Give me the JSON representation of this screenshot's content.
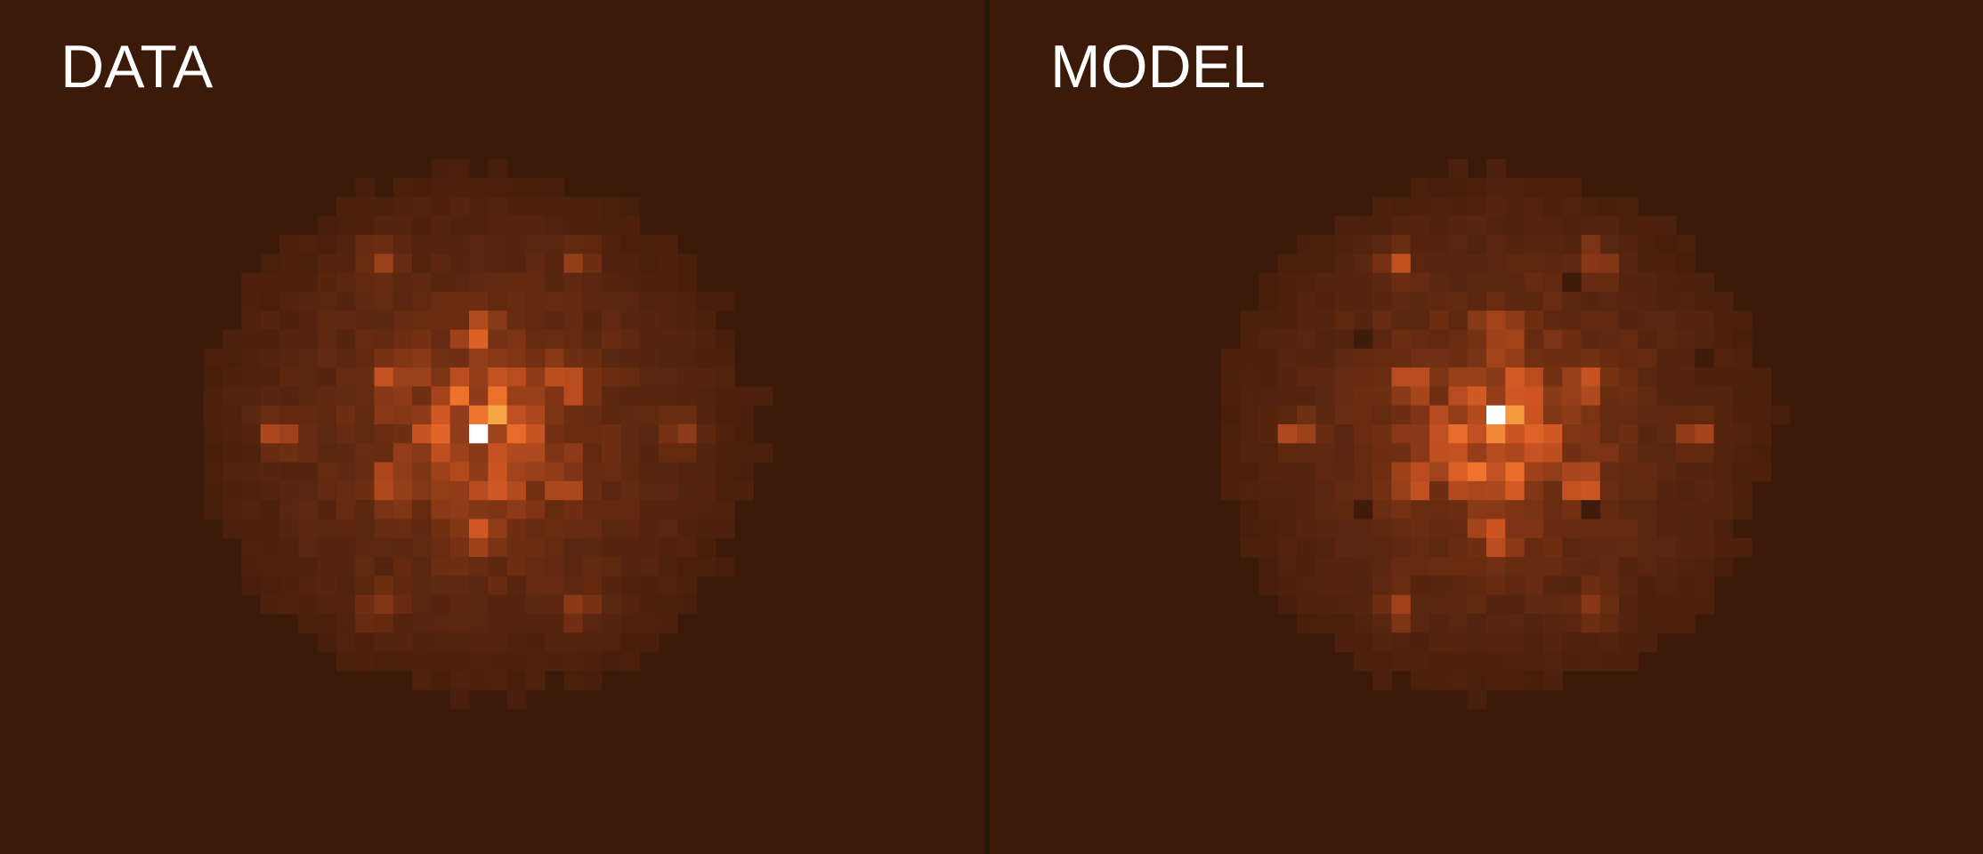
{
  "panels": [
    {
      "label": "DATA"
    },
    {
      "label": "MODEL"
    }
  ]
}
